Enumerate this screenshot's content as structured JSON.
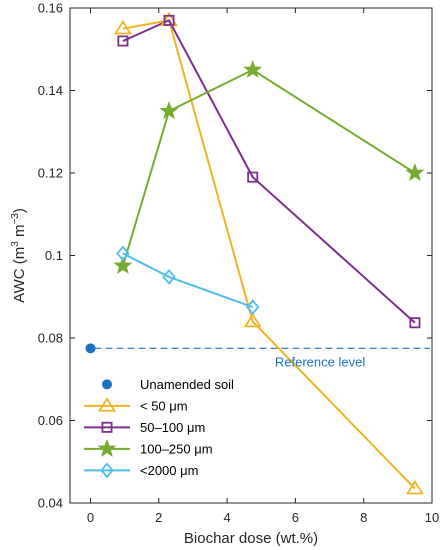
{
  "chart_data": {
    "type": "line",
    "xlabel": "Biochar dose (wt.%)",
    "ylabel_main": "AWC (m",
    "ylabel_sup1": "3",
    "ylabel_mid": " m",
    "ylabel_sup2": "−3",
    "ylabel_end": ")",
    "xlim": [
      -0.6,
      10
    ],
    "ylim": [
      0.04,
      0.16
    ],
    "x_ticks": [
      0,
      2,
      4,
      6,
      8,
      10
    ],
    "x_tick_labels": [
      "0",
      "2",
      "4",
      "6",
      "8",
      "10"
    ],
    "y_ticks": [
      0.04,
      0.06,
      0.08,
      0.1,
      0.12,
      0.14,
      0.16
    ],
    "y_tick_labels": [
      "0.04",
      "0.06",
      "0.08",
      "0.1",
      "0.12",
      "0.14",
      "0.16"
    ],
    "grid": false,
    "legend_position": "lower-left",
    "reference": {
      "name": "Unamended soil",
      "x": 0,
      "y": 0.0775,
      "color": "#1f72bf",
      "line_label": "Reference level"
    },
    "series": [
      {
        "name": "< 50 μm",
        "color": "#f0b323",
        "marker": "triangle",
        "x": [
          0.95,
          2.3,
          4.75,
          9.5
        ],
        "y": [
          0.155,
          0.157,
          0.084,
          0.0435
        ]
      },
      {
        "name": "50–100 μm",
        "color": "#7c2f8f",
        "marker": "square",
        "x": [
          0.95,
          2.3,
          4.75,
          9.5
        ],
        "y": [
          0.152,
          0.157,
          0.119,
          0.0837
        ]
      },
      {
        "name": "100–250 μm",
        "color": "#77ac30",
        "marker": "star",
        "x": [
          0.95,
          2.3,
          4.75,
          9.5
        ],
        "y": [
          0.0975,
          0.135,
          0.145,
          0.12
        ]
      },
      {
        "name": "<2000 μm",
        "color": "#4dbeee",
        "marker": "diamond",
        "x": [
          0.95,
          2.3,
          4.75
        ],
        "y": [
          0.1005,
          0.0948,
          0.0875
        ]
      }
    ]
  }
}
